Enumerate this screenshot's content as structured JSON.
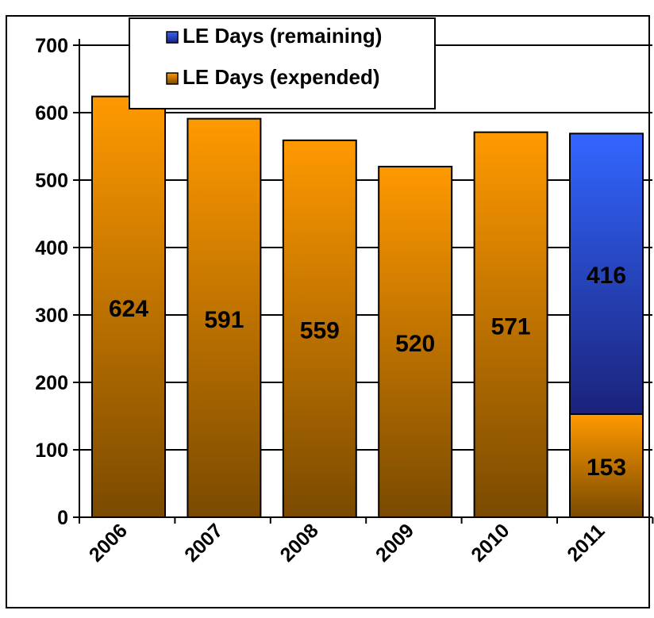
{
  "chart_data": {
    "type": "bar",
    "stacked": true,
    "categories": [
      "2006",
      "2007",
      "2008",
      "2009",
      "2010",
      "2011"
    ],
    "series": [
      {
        "name": "LE Days (expended)",
        "values": [
          624,
          591,
          559,
          520,
          571,
          153
        ],
        "labels": [
          "624",
          "591",
          "559",
          "520",
          "571",
          "153"
        ],
        "color_top": "#ff9900",
        "color_bottom": "#7a4a00"
      },
      {
        "name": "LE Days (remaining)",
        "values": [
          0,
          0,
          0,
          0,
          0,
          416
        ],
        "labels": [
          "",
          "",
          "",
          "",
          "",
          "416"
        ],
        "color_top": "#3366ff",
        "color_bottom": "#1a237a"
      }
    ],
    "legend": [
      "LE Days (remaining)",
      "LE Days (expended)"
    ],
    "legend_position": "top-left",
    "yticks": [
      "0",
      "100",
      "200",
      "300",
      "400",
      "500",
      "600",
      "700"
    ],
    "ylim": [
      0,
      700
    ],
    "grid": true,
    "title": "",
    "xlabel": "",
    "ylabel": ""
  }
}
